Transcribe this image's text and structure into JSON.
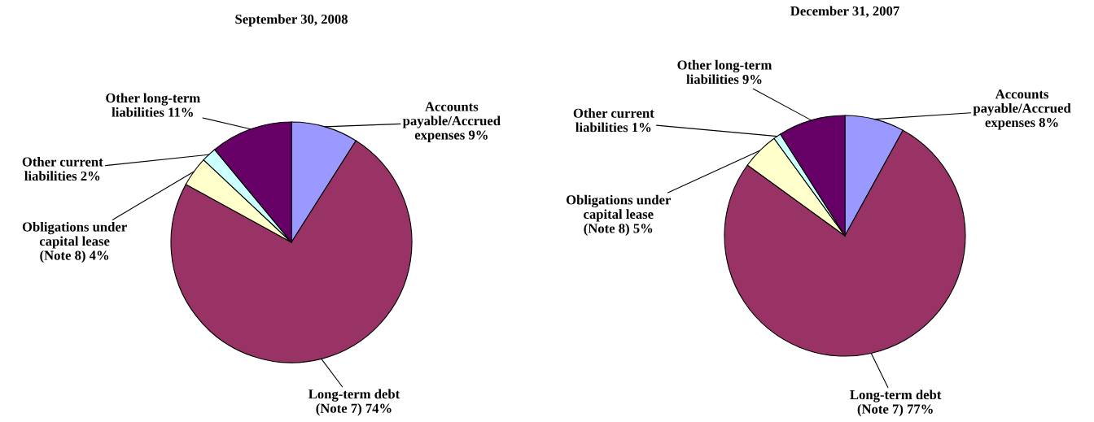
{
  "chart_data": [
    {
      "type": "pie",
      "title": "September 30, 2008",
      "categories": [
        "Accounts\npayable/Accrued\nexpenses",
        "Long-term debt\n(Note 7)",
        "Obligations under\ncapital lease\n(Note 8)",
        "Other current\nliabilities",
        "Other long-term\nliabilities"
      ],
      "values": [
        9,
        74,
        4,
        2,
        11
      ],
      "value_labels": [
        "9%",
        "74%",
        "4%",
        "2%",
        "11%"
      ],
      "colors": [
        "#9999ff",
        "#993366",
        "#ffffcc",
        "#ccffff",
        "#660066"
      ]
    },
    {
      "type": "pie",
      "title": "December 31, 2007",
      "categories": [
        "Accounts\npayable/Accrued\nexpenses",
        "Long-term debt\n(Note 7)",
        "Obligations under\ncapital lease\n(Note 8)",
        "Other current\nliabilities",
        "Other long-term\nliabilities"
      ],
      "values": [
        8,
        77,
        5,
        1,
        9
      ],
      "value_labels": [
        "8%",
        "77%",
        "5%",
        "1%",
        "9%"
      ],
      "colors": [
        "#9999ff",
        "#993366",
        "#ffffcc",
        "#ccffff",
        "#660066"
      ]
    }
  ]
}
